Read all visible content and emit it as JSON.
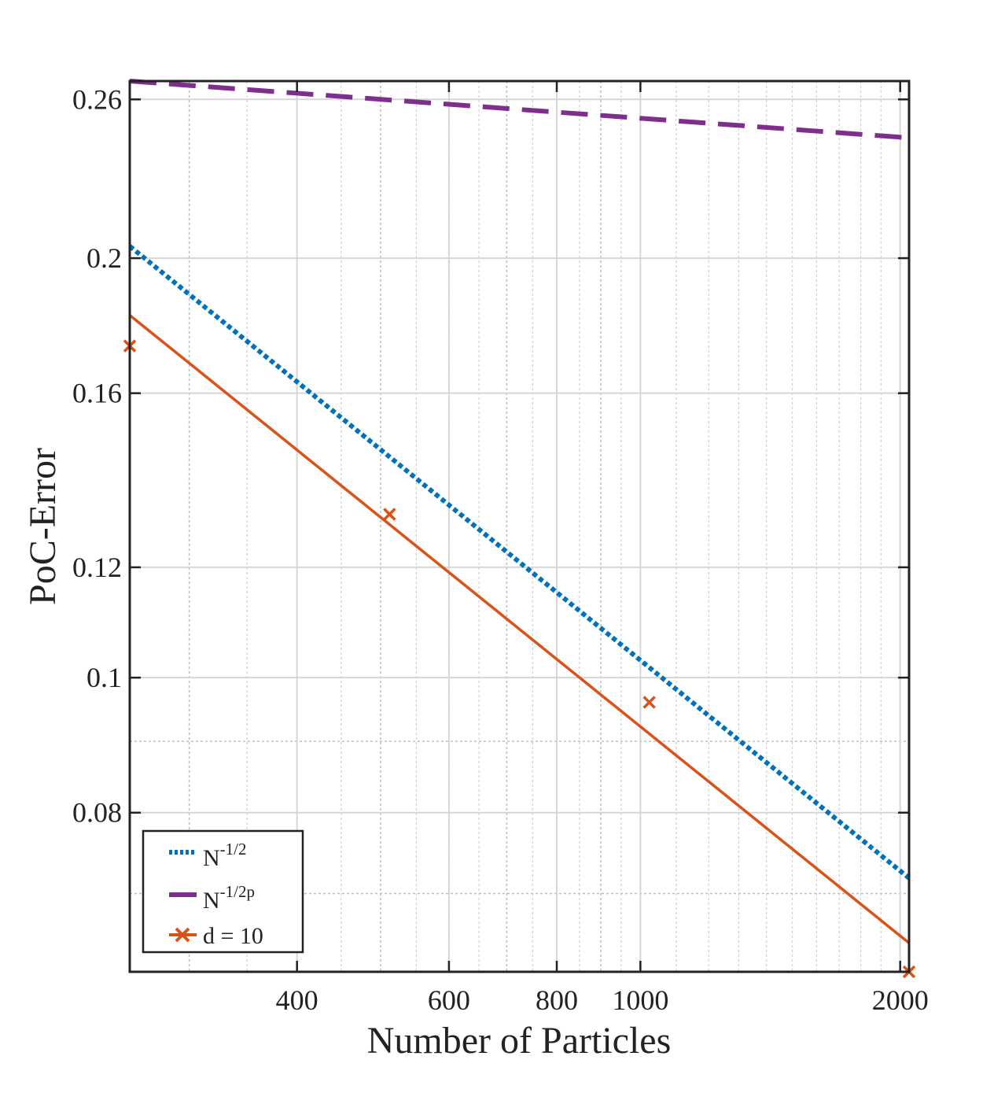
{
  "chart_data": {
    "type": "line",
    "xlabel": "Number of Particles",
    "ylabel": "PoC-Error",
    "xscale": "log",
    "yscale": "log",
    "xlim": [
      256,
      2048
    ],
    "ylim": [
      0.0615,
      0.268
    ],
    "grid": "on (major and minor)",
    "legend_position": "bottom-left",
    "x_ticks": [
      400,
      600,
      800,
      1000,
      2000
    ],
    "x_tick_labels": [
      "400",
      "600",
      "800",
      "1000",
      "2000"
    ],
    "y_ticks": [
      0.08,
      0.1,
      0.12,
      0.16,
      0.2,
      0.26
    ],
    "y_tick_labels": [
      "0.08",
      "0.1",
      "0.12",
      "0.16",
      "0.2",
      "0.26"
    ],
    "series": [
      {
        "name": "N",
        "name_superscript": "-1/2",
        "style": "dotted",
        "color": "#0072BD",
        "x": [
          256,
          2048
        ],
        "y": [
          0.204,
          0.0718
        ]
      },
      {
        "name": "N",
        "name_superscript": "-1/2p",
        "style": "dashed",
        "color": "#7E2F8E",
        "x": [
          256,
          2048
        ],
        "y": [
          0.268,
          0.244
        ]
      },
      {
        "name": "d = 10",
        "style": "markers",
        "marker": "x",
        "color": "#D95319",
        "x": [
          256,
          512,
          1024,
          2048
        ],
        "y": [
          0.173,
          0.131,
          0.096,
          0.0615
        ]
      },
      {
        "name": "",
        "style": "solid",
        "color": "#D95319",
        "x": [
          256,
          2048
        ],
        "y": [
          0.182,
          0.0645
        ]
      }
    ]
  }
}
